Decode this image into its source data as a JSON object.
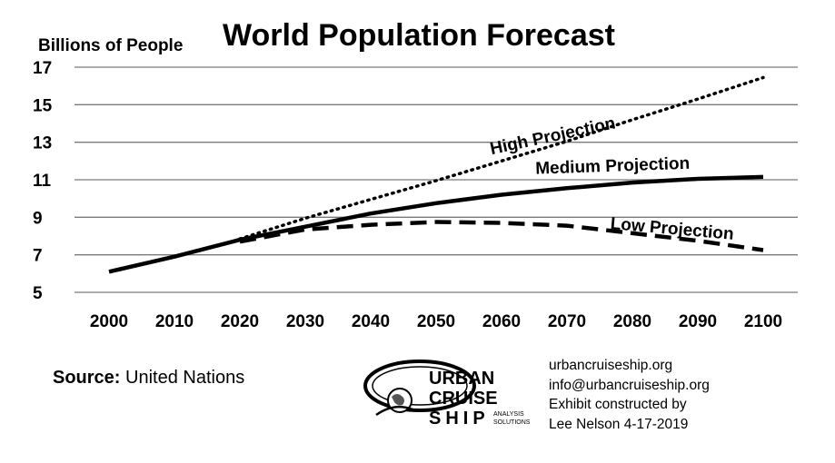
{
  "chart_data": {
    "type": "line",
    "title": "World Population Forecast",
    "ylabel": "Billions of People",
    "xlabel": "",
    "ylim": [
      5,
      17
    ],
    "yticks": [
      5,
      7,
      9,
      11,
      13,
      15,
      17
    ],
    "xticks": [
      2000,
      2010,
      2020,
      2030,
      2040,
      2050,
      2060,
      2070,
      2080,
      2090,
      2100
    ],
    "grid": true,
    "series": [
      {
        "name": "Medium Projection",
        "style": "solid",
        "x": [
          2000,
          2010,
          2020,
          2030,
          2040,
          2050,
          2060,
          2070,
          2080,
          2090,
          2100
        ],
        "y": [
          6.1,
          6.9,
          7.8,
          8.5,
          9.2,
          9.75,
          10.2,
          10.55,
          10.85,
          11.05,
          11.15
        ]
      },
      {
        "name": "High Projection",
        "style": "dotted",
        "x": [
          2020,
          2030,
          2040,
          2050,
          2060,
          2070,
          2080,
          2090,
          2100
        ],
        "y": [
          7.85,
          8.95,
          9.95,
          10.95,
          12.0,
          13.05,
          14.2,
          15.3,
          16.45
        ]
      },
      {
        "name": "Low Projection",
        "style": "dashed",
        "x": [
          2020,
          2030,
          2040,
          2050,
          2060,
          2070,
          2080,
          2090,
          2100
        ],
        "y": [
          7.7,
          8.35,
          8.6,
          8.75,
          8.7,
          8.55,
          8.15,
          7.75,
          7.25
        ]
      }
    ]
  },
  "source": {
    "label": "Source:",
    "value": "United Nations"
  },
  "logo": {
    "line1": "URBAN",
    "line2": "CRUISE",
    "line3": "SHIP",
    "sub1": "ANALYSIS",
    "sub2": "SOLUTIONS"
  },
  "credits": {
    "line1": "urbancruiseship.org",
    "line2": "info@urbancruiseship.org",
    "line3": "Exhibit constructed by",
    "line4": "Lee Nelson 4-17-2019"
  }
}
